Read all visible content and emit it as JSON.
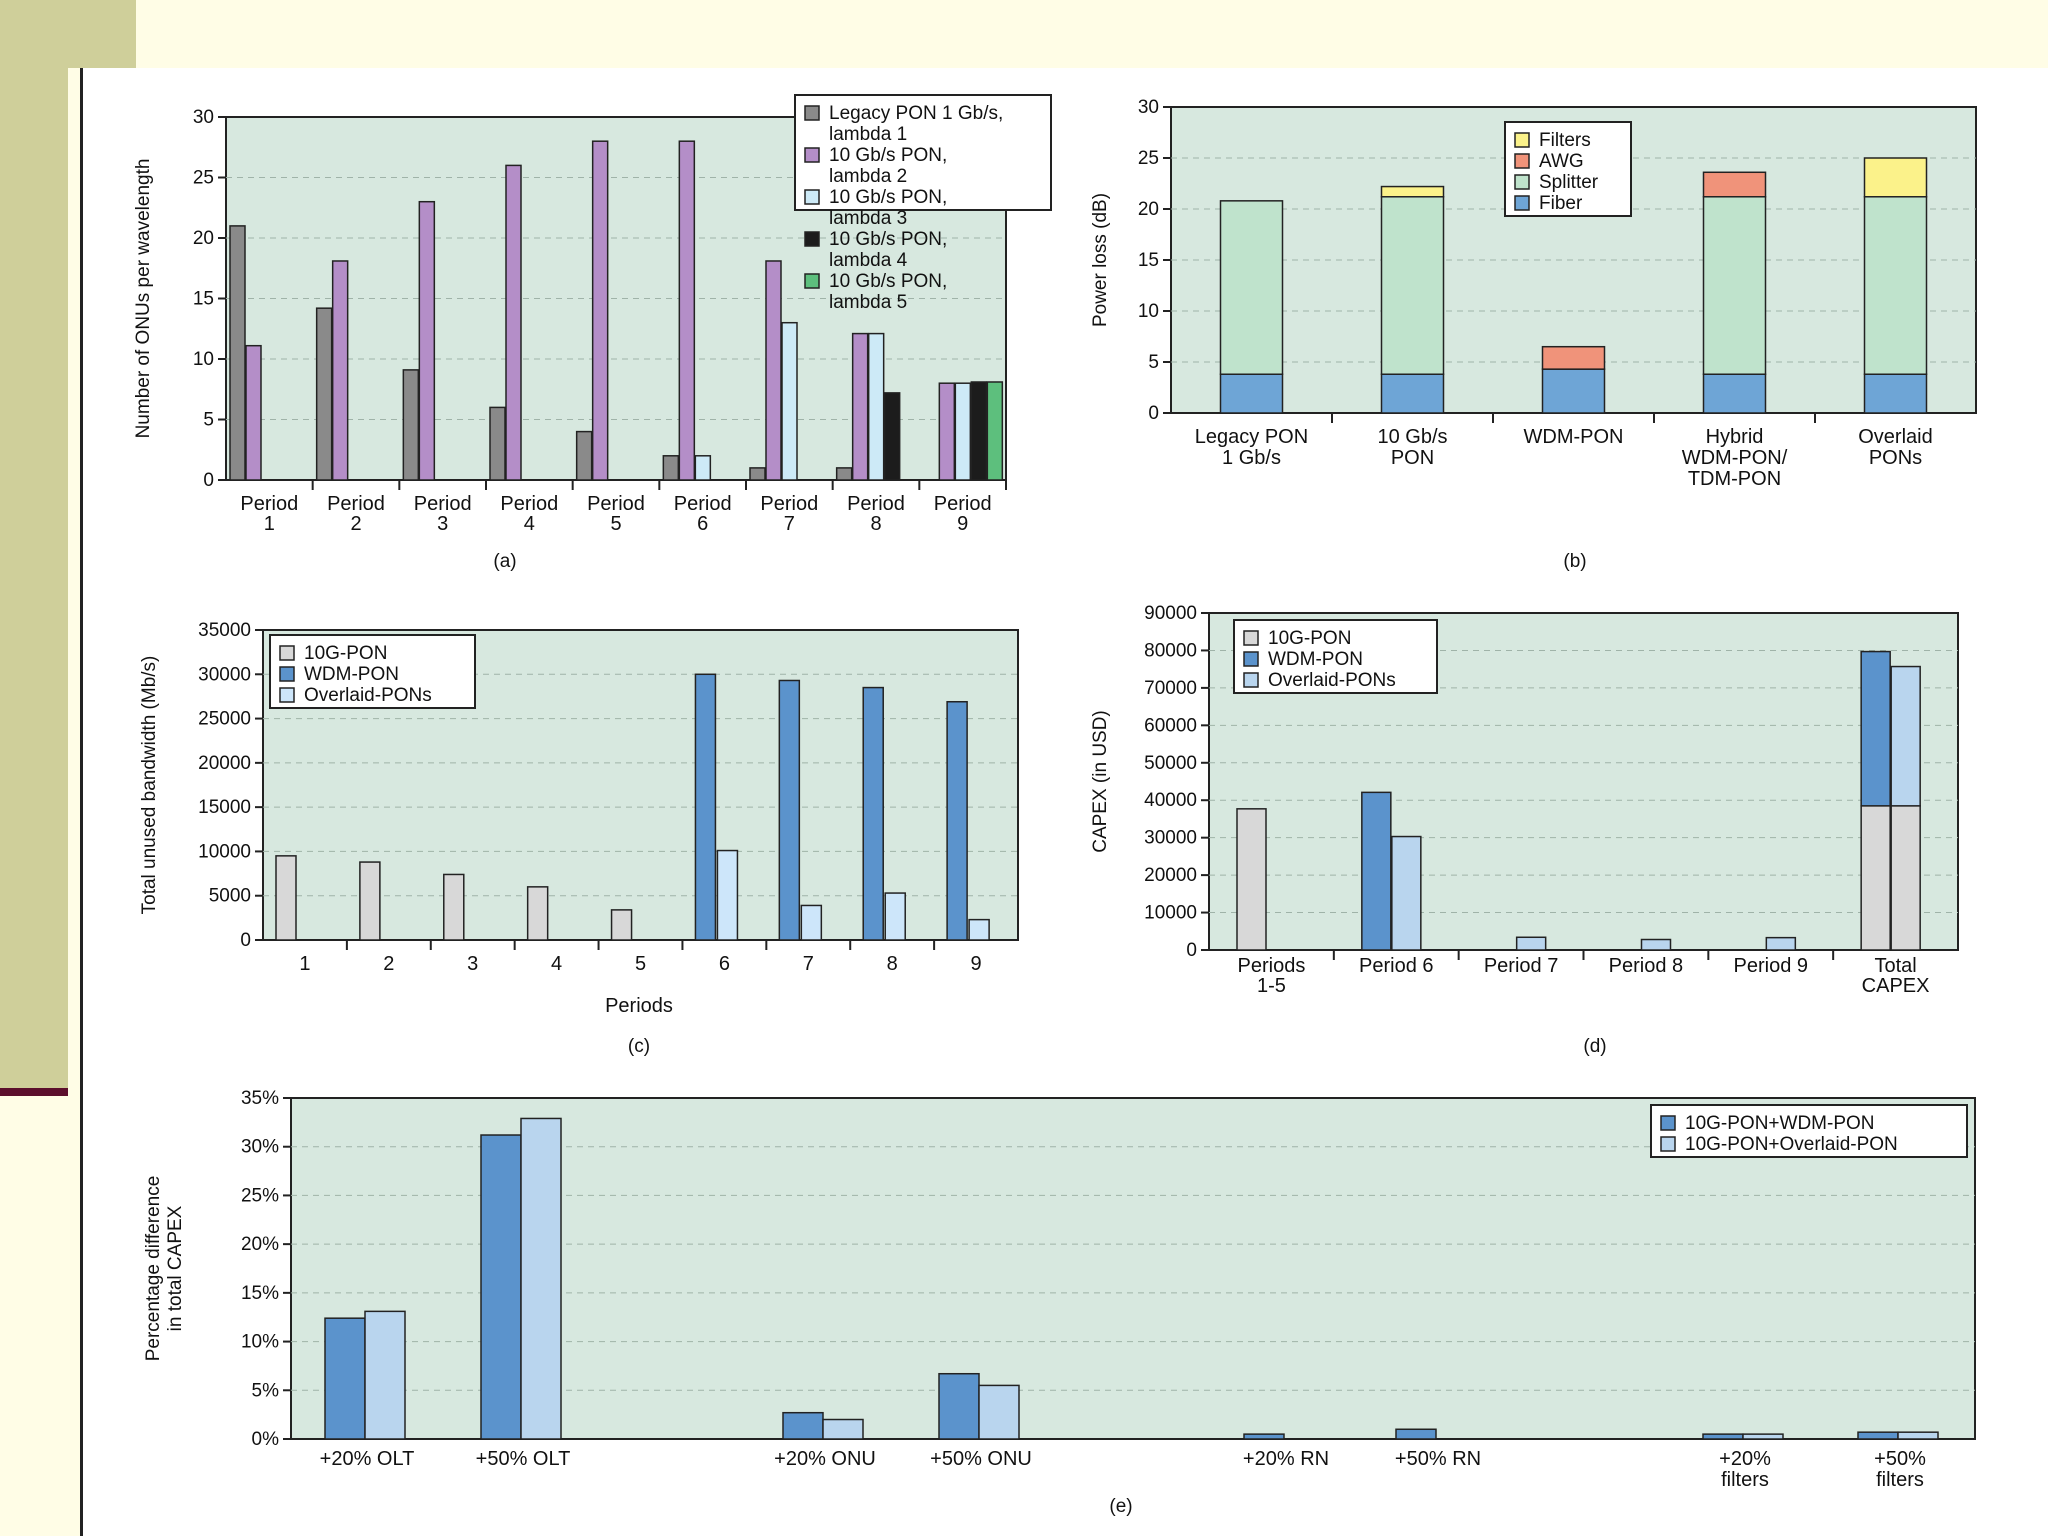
{
  "colors": {
    "plot_bg": "#d7e8df",
    "legacy_pon": "#8a8a8a",
    "lambda2": "#b48ec8",
    "lambda3": "#cdeaf7",
    "lambda4": "#1c1c1c",
    "lambda5": "#5dbf7d",
    "filters": "#fbf28a",
    "awg": "#f0937a",
    "splitter": "#bfe3cc",
    "fiber": "#6ea5d6",
    "ten_g_pon": "#d8d8d8",
    "wdm_pon": "#5b93cc",
    "overlaid_pons": "#cde6fa",
    "overlaid_pons_d": "#b9d5ee",
    "wdm_combo": "#5b93cc",
    "overlaid_combo": "#b9d5ee"
  },
  "chart_data": [
    {
      "id": "a",
      "type": "bar",
      "caption": "(a)",
      "ylabel": "Number of ONUs per wavelength",
      "ylim": [
        0,
        30
      ],
      "yticks": [
        "0",
        "5",
        "10",
        "15",
        "20",
        "25",
        "30"
      ],
      "categories": [
        "Period\n1",
        "Period\n2",
        "Period\n3",
        "Period\n4",
        "Period\n5",
        "Period\n6",
        "Period\n7",
        "Period\n8",
        "Period\n9"
      ],
      "legend_position": "top-right",
      "series": [
        {
          "name": "Legacy PON 1 Gb/s,\nlambda 1",
          "color_key": "legacy_pon",
          "values": [
            21,
            14.2,
            9.1,
            6,
            4,
            2,
            1,
            1,
            0
          ]
        },
        {
          "name": "10 Gb/s PON,\nlambda 2",
          "color_key": "lambda2",
          "values": [
            11.1,
            18.1,
            23,
            26,
            28,
            28,
            18.1,
            12.1,
            8
          ]
        },
        {
          "name": "10 Gb/s PON,\nlambda 3",
          "color_key": "lambda3",
          "values": [
            0,
            0,
            0,
            0,
            0,
            2,
            13,
            12.1,
            8
          ]
        },
        {
          "name": "10 Gb/s PON,\nlambda 4",
          "color_key": "lambda4",
          "values": [
            0,
            0,
            0,
            0,
            0,
            0,
            0,
            7.2,
            8.1
          ]
        },
        {
          "name": "10 Gb/s PON,\nlambda 5",
          "color_key": "lambda5",
          "values": [
            0,
            0,
            0,
            0,
            0,
            0,
            0,
            0,
            8.1
          ]
        }
      ]
    },
    {
      "id": "b",
      "type": "stacked-bar",
      "caption": "(b)",
      "ylabel": "Power loss (dB)",
      "ylim": [
        0,
        30
      ],
      "yticks": [
        "0",
        "5",
        "10",
        "15",
        "20",
        "25",
        "30"
      ],
      "categories": [
        "Legacy PON\n1 Gb/s",
        "10 Gb/s\nPON",
        "WDM-PON",
        "Hybrid\nWDM-PON/\nTDM-PON",
        "Overlaid\nPONs"
      ],
      "legend_position": "top-center",
      "series": [
        {
          "name": "Fiber",
          "color_key": "fiber",
          "values": [
            3.8,
            3.8,
            4.3,
            3.8,
            3.8
          ]
        },
        {
          "name": "Splitter",
          "color_key": "splitter",
          "values": [
            17,
            17.4,
            0,
            17.4,
            17.4
          ]
        },
        {
          "name": "AWG",
          "color_key": "awg",
          "values": [
            0,
            0,
            2.2,
            2.4,
            0
          ]
        },
        {
          "name": "Filters",
          "color_key": "filters",
          "values": [
            0,
            1,
            0,
            0,
            3.8
          ]
        }
      ],
      "legend_order": [
        "Filters",
        "AWG",
        "Splitter",
        "Fiber"
      ]
    },
    {
      "id": "c",
      "type": "bar",
      "caption": "(c)",
      "xlabel": "Periods",
      "ylabel": "Total unused bandwidth (Mb/s)",
      "ylim": [
        0,
        35000
      ],
      "yticks": [
        "0",
        "5000",
        "10000",
        "15000",
        "20000",
        "25000",
        "30000",
        "35000"
      ],
      "categories": [
        "1",
        "2",
        "3",
        "4",
        "5",
        "6",
        "7",
        "8",
        "9"
      ],
      "legend_position": "top-left",
      "series": [
        {
          "name": "10G-PON",
          "color_key": "ten_g_pon",
          "values": [
            9500,
            8800,
            7400,
            6000,
            3400,
            0,
            0,
            0,
            0
          ]
        },
        {
          "name": "WDM-PON",
          "color_key": "wdm_pon",
          "values": [
            0,
            0,
            0,
            0,
            0,
            30000,
            29300,
            28500,
            26900
          ]
        },
        {
          "name": "Overlaid-PONs",
          "color_key": "overlaid_pons",
          "values": [
            0,
            0,
            0,
            0,
            0,
            10100,
            3900,
            5300,
            2300
          ]
        }
      ]
    },
    {
      "id": "d",
      "type": "bar",
      "caption": "(d)",
      "ylabel": "CAPEX (in USD)",
      "ylim": [
        0,
        90000
      ],
      "yticks": [
        "0",
        "10000",
        "20000",
        "30000",
        "40000",
        "50000",
        "60000",
        "70000",
        "80000",
        "90000"
      ],
      "categories": [
        "Periods\n1-5",
        "Period 6",
        "Period 7",
        "Period 8",
        "Period 9",
        "Total\nCAPEX"
      ],
      "legend_position": "top-left",
      "series": [
        {
          "name": "10G-PON",
          "color_key": "ten_g_pon",
          "values": [
            37700,
            0,
            0,
            0,
            0,
            0
          ]
        },
        {
          "name": "WDM-PON",
          "color_key": "wdm_pon",
          "values": [
            0,
            42100,
            0,
            0,
            0,
            79700
          ]
        },
        {
          "name": "Overlaid-PONs",
          "color_key": "overlaid_pons_d",
          "values": [
            0,
            30300,
            3400,
            2800,
            3300,
            75700
          ]
        }
      ],
      "total_base_10g": 38500
    },
    {
      "id": "e",
      "type": "bar",
      "caption": "(e)",
      "ylabel": "Percentage difference\nin total CAPEX",
      "ylim": [
        0,
        35
      ],
      "yticks": [
        "0%",
        "5%",
        "10%",
        "15%",
        "20%",
        "25%",
        "30%",
        "35%"
      ],
      "categories": [
        "+20% OLT",
        "+50% OLT",
        "+20% ONU",
        "+50% ONU",
        "+20% RN",
        "+50% RN",
        "+20%\nfilters",
        "+50%\nfilters"
      ],
      "legend_position": "top-right",
      "series": [
        {
          "name": "10G-PON+WDM-PON",
          "color_key": "wdm_combo",
          "values": [
            12.4,
            31.2,
            2.7,
            6.7,
            0.5,
            1.0,
            0.5,
            0.7
          ]
        },
        {
          "name": "10G-PON+Overlaid-PON",
          "color_key": "overlaid_combo",
          "values": [
            13.1,
            32.9,
            2.0,
            5.5,
            0,
            0,
            0.5,
            0.7
          ]
        }
      ]
    }
  ]
}
